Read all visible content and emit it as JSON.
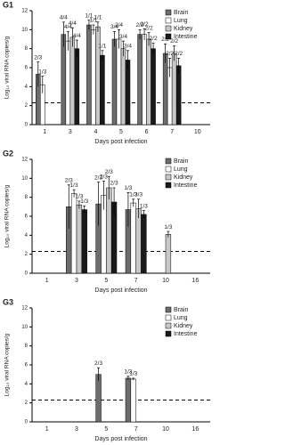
{
  "chart_data": [
    {
      "type": "bar",
      "title": "G1",
      "xlabel": "Days post infection",
      "ylabel": "Log₁₀ viral RNA copies/g",
      "categories": [
        "1",
        "3",
        "4",
        "5",
        "6",
        "7",
        "10"
      ],
      "ylim": [
        0,
        12
      ],
      "yticks": [
        0,
        2,
        4,
        6,
        8,
        10,
        12
      ],
      "threshold": 2.3,
      "legend": "top-right",
      "series": [
        {
          "name": "Brain",
          "color": "#6d6d6d",
          "values": [
            5.3,
            9.5,
            10.5,
            9.0,
            9.5,
            7.5,
            null
          ],
          "errors": [
            1.3,
            1.3,
            0.5,
            0.8,
            0.5,
            1.0,
            null
          ],
          "labels": [
            "2/3",
            "4/4",
            "1/1",
            "3/4",
            "2/2",
            "2/2",
            null
          ]
        },
        {
          "name": "Lung",
          "color": "#ffffff",
          "values": [
            4.2,
            8.8,
            10.0,
            9.0,
            9.5,
            6.0,
            null
          ],
          "errors": [
            0.9,
            1.0,
            0.5,
            1.0,
            0.6,
            1.0,
            null
          ],
          "labels": [
            "1/3",
            "4/4",
            "1/1",
            "2/4",
            "2/2",
            "2/2",
            null
          ]
        },
        {
          "name": "Kidney",
          "color": "#c8c8c8",
          "values": [
            null,
            9.2,
            10.3,
            8.0,
            9.0,
            7.5,
            null
          ],
          "errors": [
            null,
            1.0,
            0.5,
            0.8,
            0.7,
            0.8,
            null
          ],
          "labels": [
            null,
            "4/4",
            "1/1",
            "3/4",
            "2/2",
            "2/2",
            null
          ]
        },
        {
          "name": "Intestine",
          "color": "#1a1a1a",
          "values": [
            null,
            8.0,
            7.3,
            6.8,
            8.0,
            6.2,
            null
          ],
          "errors": [
            null,
            0.9,
            0.5,
            1.0,
            0.6,
            0.8,
            null
          ],
          "labels": [
            null,
            "4/4",
            "1/1",
            "3/4",
            "2/2",
            "2/2",
            null
          ]
        }
      ]
    },
    {
      "type": "bar",
      "title": "G2",
      "xlabel": "Days post infection",
      "ylabel": "Log₁₀ viral RNA copies/g",
      "categories": [
        "1",
        "3",
        "5",
        "7",
        "10",
        "16"
      ],
      "ylim": [
        0,
        12
      ],
      "yticks": [
        0,
        2,
        4,
        6,
        8,
        10,
        12
      ],
      "threshold": 2.3,
      "legend": "top-right",
      "series": [
        {
          "name": "Brain",
          "color": "#6d6d6d",
          "values": [
            null,
            7.0,
            7.3,
            6.7,
            null,
            null
          ],
          "errors": [
            null,
            2.3,
            2.3,
            1.8,
            null,
            null
          ],
          "labels": [
            null,
            "2/3",
            "2/3",
            "1/3",
            null,
            null
          ]
        },
        {
          "name": "Lung",
          "color": "#ffffff",
          "values": [
            null,
            8.4,
            8.2,
            7.4,
            null,
            null
          ],
          "errors": [
            null,
            0.4,
            1.5,
            0.4,
            null,
            null
          ],
          "labels": [
            null,
            "1/3",
            "2/3",
            "1/3",
            null,
            null
          ]
        },
        {
          "name": "Kidney",
          "color": "#c8c8c8",
          "values": [
            null,
            7.2,
            9.0,
            6.8,
            4.1,
            null
          ],
          "errors": [
            null,
            0.4,
            1.2,
            1.0,
            0.3,
            null
          ],
          "labels": [
            null,
            "1/3",
            "2/3",
            "3/3",
            "1/3",
            null
          ]
        },
        {
          "name": "Intestine",
          "color": "#1a1a1a",
          "values": [
            null,
            6.7,
            7.5,
            6.2,
            null,
            null
          ],
          "errors": [
            null,
            0.4,
            1.5,
            0.4,
            null,
            null
          ],
          "labels": [
            null,
            "1/3",
            "2/3",
            "1/3",
            null,
            null
          ]
        }
      ]
    },
    {
      "type": "bar",
      "title": "G3",
      "xlabel": "Days post infection",
      "ylabel": "Log₁₀ viral RNA copies/g",
      "categories": [
        "1",
        "3",
        "5",
        "7",
        "10",
        "16"
      ],
      "ylim": [
        0,
        12
      ],
      "yticks": [
        0,
        2,
        4,
        6,
        8,
        10,
        12
      ],
      "threshold": 2.3,
      "legend": "top-right",
      "series": [
        {
          "name": "Brain",
          "color": "#6d6d6d",
          "values": [
            null,
            null,
            5.0,
            4.6,
            null,
            null
          ],
          "errors": [
            null,
            null,
            0.7,
            0.2,
            null,
            null
          ],
          "labels": [
            null,
            null,
            "2/3",
            "1/3",
            null,
            null
          ]
        },
        {
          "name": "Lung",
          "color": "#ffffff",
          "values": [
            null,
            null,
            null,
            4.5,
            null,
            null
          ],
          "errors": [
            null,
            null,
            null,
            0.1,
            null,
            null
          ],
          "labels": [
            null,
            null,
            null,
            "1/3",
            null,
            null
          ]
        },
        {
          "name": "Kidney",
          "color": "#c8c8c8",
          "values": [
            null,
            null,
            null,
            null,
            null,
            null
          ],
          "errors": [
            null,
            null,
            null,
            null,
            null,
            null
          ],
          "labels": [
            null,
            null,
            null,
            null,
            null,
            null
          ]
        },
        {
          "name": "Intestine",
          "color": "#1a1a1a",
          "values": [
            null,
            null,
            null,
            null,
            null,
            null
          ],
          "errors": [
            null,
            null,
            null,
            null,
            null,
            null
          ],
          "labels": [
            null,
            null,
            null,
            null,
            null,
            null
          ]
        }
      ]
    }
  ]
}
